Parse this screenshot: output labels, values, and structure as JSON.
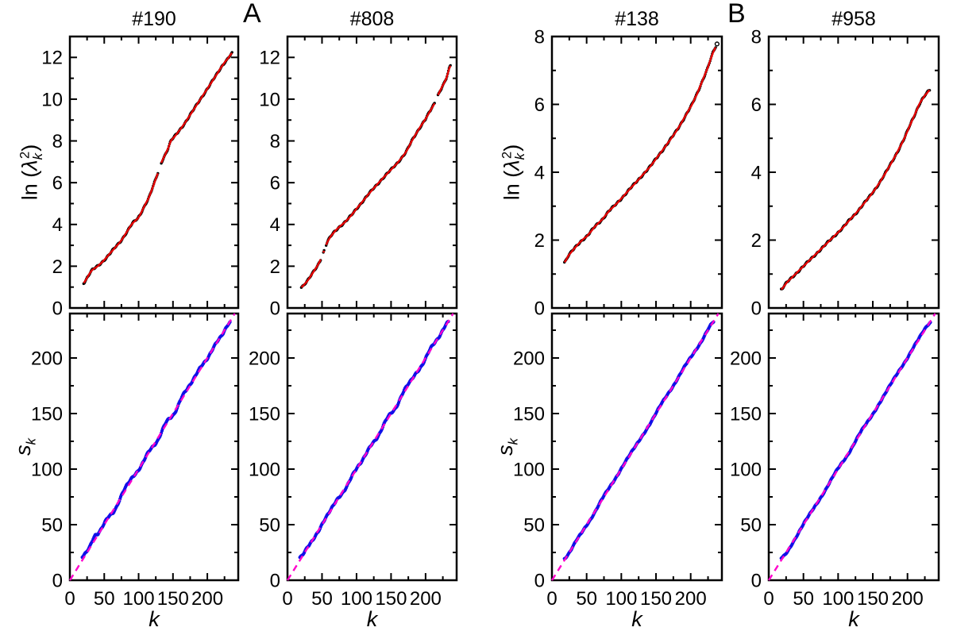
{
  "section_labels": {
    "a": "A",
    "b": "B"
  },
  "axis_labels": {
    "ln_prefix": "ln (",
    "lambda": "λ",
    "sub_k": "k",
    "sup_2": "2",
    "close_paren": ")",
    "s": "s",
    "k": "k"
  },
  "colors": {
    "points_top": "#000000",
    "fit_line": "#e60000",
    "points_bottom": "#1010e8",
    "identity_line": "#ff00cc",
    "axis": "#000000",
    "background": "#ffffff"
  },
  "chart_data": [
    {
      "id": "top-190",
      "type": "scatter",
      "title": "#190",
      "xlim": [
        0,
        245
      ],
      "ylim": [
        0,
        13
      ],
      "xticks": [
        0,
        50,
        100,
        150,
        200
      ],
      "x_minor_step": 25,
      "yticks": [
        0,
        2,
        4,
        6,
        8,
        10,
        12
      ],
      "y_minor_step": 1,
      "show_x_tick_labels": false,
      "krange": [
        20,
        236
      ],
      "noise": 0.045,
      "points_color": "#000000",
      "points_r": 1.7,
      "fit": {
        "color": "#e60000",
        "width": 2.4
      },
      "gaps": [
        [
          128.6,
          132.4
        ]
      ],
      "anchors": [
        [
          20,
          1.2
        ],
        [
          26,
          1.5
        ],
        [
          32,
          1.8
        ],
        [
          36,
          1.9
        ],
        [
          42,
          2.05
        ],
        [
          50,
          2.3
        ],
        [
          58,
          2.6
        ],
        [
          66,
          2.9
        ],
        [
          74,
          3.2
        ],
        [
          82,
          3.6
        ],
        [
          90,
          4.0
        ],
        [
          96,
          4.2
        ],
        [
          100,
          4.35
        ],
        [
          108,
          4.85
        ],
        [
          115,
          5.3
        ],
        [
          122,
          5.9
        ],
        [
          128,
          6.45
        ],
        [
          133,
          6.95
        ],
        [
          138,
          7.3
        ],
        [
          143,
          7.65
        ],
        [
          147,
          8.0
        ],
        [
          152,
          8.2
        ],
        [
          158,
          8.45
        ],
        [
          166,
          8.8
        ],
        [
          175,
          9.25
        ],
        [
          185,
          9.75
        ],
        [
          195,
          10.25
        ],
        [
          205,
          10.75
        ],
        [
          215,
          11.25
        ],
        [
          224,
          11.7
        ],
        [
          230,
          11.95
        ],
        [
          236,
          12.2
        ]
      ]
    },
    {
      "id": "top-808",
      "type": "scatter",
      "title": "#808",
      "xlim": [
        0,
        245
      ],
      "ylim": [
        0,
        13
      ],
      "xticks": [
        0,
        50,
        100,
        150,
        200
      ],
      "x_minor_step": 25,
      "yticks": [
        0,
        2,
        4,
        6,
        8,
        10,
        12
      ],
      "y_minor_step": 1,
      "show_x_tick_labels": false,
      "krange": [
        20,
        236
      ],
      "noise": 0.045,
      "points_color": "#000000",
      "points_r": 1.7,
      "fit": {
        "color": "#e60000",
        "width": 2.4
      },
      "gaps": [
        [
          48.5,
          51.2
        ],
        [
          53.2,
          55.8
        ],
        [
          213.8,
          217.2
        ]
      ],
      "anchors": [
        [
          20,
          1.0
        ],
        [
          25,
          1.15
        ],
        [
          30,
          1.35
        ],
        [
          36,
          1.65
        ],
        [
          42,
          1.95
        ],
        [
          47,
          2.25
        ],
        [
          52,
          2.65
        ],
        [
          57,
          3.1
        ],
        [
          62,
          3.4
        ],
        [
          68,
          3.65
        ],
        [
          75,
          3.88
        ],
        [
          82,
          4.08
        ],
        [
          90,
          4.35
        ],
        [
          100,
          4.75
        ],
        [
          110,
          5.15
        ],
        [
          120,
          5.55
        ],
        [
          130,
          5.92
        ],
        [
          140,
          6.28
        ],
        [
          150,
          6.62
        ],
        [
          158,
          6.9
        ],
        [
          165,
          7.18
        ],
        [
          172,
          7.5
        ],
        [
          180,
          8.0
        ],
        [
          190,
          8.55
        ],
        [
          200,
          9.05
        ],
        [
          207,
          9.45
        ],
        [
          213,
          9.8
        ],
        [
          218,
          10.2
        ],
        [
          224,
          10.6
        ],
        [
          230,
          11.0
        ],
        [
          236,
          11.6
        ]
      ]
    },
    {
      "id": "top-138",
      "type": "scatter",
      "title": "#138",
      "xlim": [
        0,
        245
      ],
      "ylim": [
        0,
        8
      ],
      "xticks": [
        0,
        50,
        100,
        150,
        200
      ],
      "x_minor_step": 25,
      "yticks": [
        0,
        2,
        4,
        6,
        8
      ],
      "y_minor_step": 1,
      "show_x_tick_labels": false,
      "krange": [
        18,
        236
      ],
      "noise": 0.03,
      "points_color": "#000000",
      "points_r": 1.7,
      "fit": {
        "color": "#e60000",
        "width": 2.4
      },
      "gaps": [],
      "extra_points": [
        [
          238,
          7.78
        ]
      ],
      "anchors": [
        [
          18,
          1.35
        ],
        [
          24,
          1.55
        ],
        [
          32,
          1.75
        ],
        [
          42,
          1.97
        ],
        [
          52,
          2.15
        ],
        [
          62,
          2.4
        ],
        [
          72,
          2.6
        ],
        [
          82,
          2.85
        ],
        [
          92,
          3.05
        ],
        [
          102,
          3.27
        ],
        [
          112,
          3.5
        ],
        [
          122,
          3.72
        ],
        [
          132,
          3.95
        ],
        [
          142,
          4.18
        ],
        [
          152,
          4.45
        ],
        [
          162,
          4.72
        ],
        [
          172,
          5.0
        ],
        [
          182,
          5.3
        ],
        [
          192,
          5.65
        ],
        [
          202,
          6.0
        ],
        [
          210,
          6.35
        ],
        [
          218,
          6.75
        ],
        [
          225,
          7.1
        ],
        [
          230,
          7.4
        ],
        [
          234,
          7.6
        ],
        [
          236,
          7.68
        ]
      ]
    },
    {
      "id": "top-958",
      "type": "scatter",
      "title": "#958",
      "xlim": [
        0,
        245
      ],
      "ylim": [
        0,
        8
      ],
      "xticks": [
        0,
        50,
        100,
        150,
        200
      ],
      "x_minor_step": 25,
      "yticks": [
        0,
        2,
        4,
        6,
        8
      ],
      "y_minor_step": 1,
      "show_x_tick_labels": false,
      "krange": [
        18,
        232
      ],
      "noise": 0.03,
      "points_color": "#000000",
      "points_r": 1.7,
      "fit": {
        "color": "#e60000",
        "width": 2.4
      },
      "gaps": [],
      "anchors": [
        [
          18,
          0.55
        ],
        [
          26,
          0.75
        ],
        [
          36,
          0.95
        ],
        [
          46,
          1.15
        ],
        [
          56,
          1.35
        ],
        [
          66,
          1.55
        ],
        [
          76,
          1.75
        ],
        [
          86,
          1.95
        ],
        [
          96,
          2.15
        ],
        [
          106,
          2.35
        ],
        [
          116,
          2.58
        ],
        [
          126,
          2.8
        ],
        [
          136,
          3.05
        ],
        [
          146,
          3.3
        ],
        [
          156,
          3.58
        ],
        [
          166,
          3.9
        ],
        [
          176,
          4.25
        ],
        [
          186,
          4.62
        ],
        [
          196,
          5.02
        ],
        [
          204,
          5.4
        ],
        [
          211,
          5.72
        ],
        [
          217,
          6.0
        ],
        [
          223,
          6.2
        ],
        [
          228,
          6.33
        ],
        [
          232,
          6.42
        ]
      ]
    },
    {
      "id": "bottom-190",
      "type": "scatter",
      "title": "",
      "xlim": [
        0,
        245
      ],
      "ylim": [
        0,
        240
      ],
      "xticks": [
        0,
        50,
        100,
        150,
        200
      ],
      "x_minor_step": 25,
      "yticks": [
        0,
        50,
        100,
        150,
        200
      ],
      "y_minor_step": 25,
      "show_x_tick_labels": true,
      "krange": [
        18,
        233
      ],
      "noise": 0.9,
      "points_color": "#1010e8",
      "points_r": 2.1,
      "identity": {
        "color": "#ff00cc",
        "width": 2.4,
        "dash": "8 6",
        "from": [
          0,
          0
        ],
        "to": [
          240,
          240
        ]
      },
      "gaps": [],
      "anchors": [
        [
          18,
          21
        ],
        [
          28,
          29
        ],
        [
          36,
          40
        ],
        [
          42,
          43
        ],
        [
          55,
          56
        ],
        [
          65,
          63
        ],
        [
          78,
          80
        ],
        [
          90,
          92
        ],
        [
          102,
          101
        ],
        [
          115,
          116
        ],
        [
          128,
          126
        ],
        [
          140,
          142
        ],
        [
          152,
          150
        ],
        [
          163,
          165
        ],
        [
          175,
          176
        ],
        [
          188,
          190
        ],
        [
          200,
          199
        ],
        [
          212,
          213
        ],
        [
          222,
          221
        ],
        [
          233,
          232
        ]
      ]
    },
    {
      "id": "bottom-808",
      "type": "scatter",
      "title": "",
      "xlim": [
        0,
        245
      ],
      "ylim": [
        0,
        240
      ],
      "xticks": [
        0,
        50,
        100,
        150,
        200
      ],
      "x_minor_step": 25,
      "yticks": [
        0,
        50,
        100,
        150,
        200
      ],
      "y_minor_step": 25,
      "show_x_tick_labels": true,
      "krange": [
        18,
        233
      ],
      "noise": 0.9,
      "points_color": "#1010e8",
      "points_r": 2.1,
      "identity": {
        "color": "#ff00cc",
        "width": 2.4,
        "dash": "8 6",
        "from": [
          0,
          0
        ],
        "to": [
          240,
          240
        ]
      },
      "gaps": [],
      "anchors": [
        [
          18,
          20
        ],
        [
          30,
          31
        ],
        [
          45,
          44
        ],
        [
          58,
          59
        ],
        [
          70,
          71
        ],
        [
          82,
          80
        ],
        [
          95,
          96
        ],
        [
          108,
          107
        ],
        [
          120,
          121
        ],
        [
          132,
          130
        ],
        [
          145,
          147
        ],
        [
          158,
          156
        ],
        [
          170,
          172
        ],
        [
          182,
          183
        ],
        [
          195,
          193
        ],
        [
          207,
          209
        ],
        [
          220,
          219
        ],
        [
          233,
          233
        ]
      ]
    },
    {
      "id": "bottom-138",
      "type": "scatter",
      "title": "",
      "xlim": [
        0,
        245
      ],
      "ylim": [
        0,
        240
      ],
      "xticks": [
        0,
        50,
        100,
        150,
        200
      ],
      "x_minor_step": 25,
      "yticks": [
        0,
        50,
        100,
        150,
        200
      ],
      "y_minor_step": 25,
      "show_x_tick_labels": true,
      "krange": [
        18,
        233
      ],
      "noise": 0.6,
      "points_color": "#1010e8",
      "points_r": 2.1,
      "identity": {
        "color": "#ff00cc",
        "width": 2.4,
        "dash": "8 6",
        "from": [
          0,
          0
        ],
        "to": [
          240,
          240
        ]
      },
      "gaps": [],
      "anchors": [
        [
          18,
          19
        ],
        [
          35,
          36
        ],
        [
          55,
          54
        ],
        [
          75,
          76
        ],
        [
          95,
          95
        ],
        [
          115,
          116
        ],
        [
          135,
          134
        ],
        [
          155,
          156
        ],
        [
          175,
          175
        ],
        [
          195,
          196
        ],
        [
          215,
          214
        ],
        [
          233,
          233
        ]
      ]
    },
    {
      "id": "bottom-958",
      "type": "scatter",
      "title": "",
      "xlim": [
        0,
        245
      ],
      "ylim": [
        0,
        240
      ],
      "xticks": [
        0,
        50,
        100,
        150,
        200
      ],
      "x_minor_step": 25,
      "yticks": [
        0,
        50,
        100,
        150,
        200
      ],
      "y_minor_step": 25,
      "show_x_tick_labels": true,
      "krange": [
        18,
        233
      ],
      "noise": 0.6,
      "points_color": "#1010e8",
      "points_r": 2.1,
      "identity": {
        "color": "#ff00cc",
        "width": 2.4,
        "dash": "8 6",
        "from": [
          0,
          0
        ],
        "to": [
          240,
          240
        ]
      },
      "gaps": [],
      "anchors": [
        [
          18,
          20
        ],
        [
          35,
          34
        ],
        [
          55,
          56
        ],
        [
          75,
          74
        ],
        [
          95,
          96
        ],
        [
          115,
          114
        ],
        [
          135,
          136
        ],
        [
          155,
          154
        ],
        [
          175,
          176
        ],
        [
          195,
          195
        ],
        [
          215,
          216
        ],
        [
          233,
          232
        ]
      ]
    }
  ]
}
